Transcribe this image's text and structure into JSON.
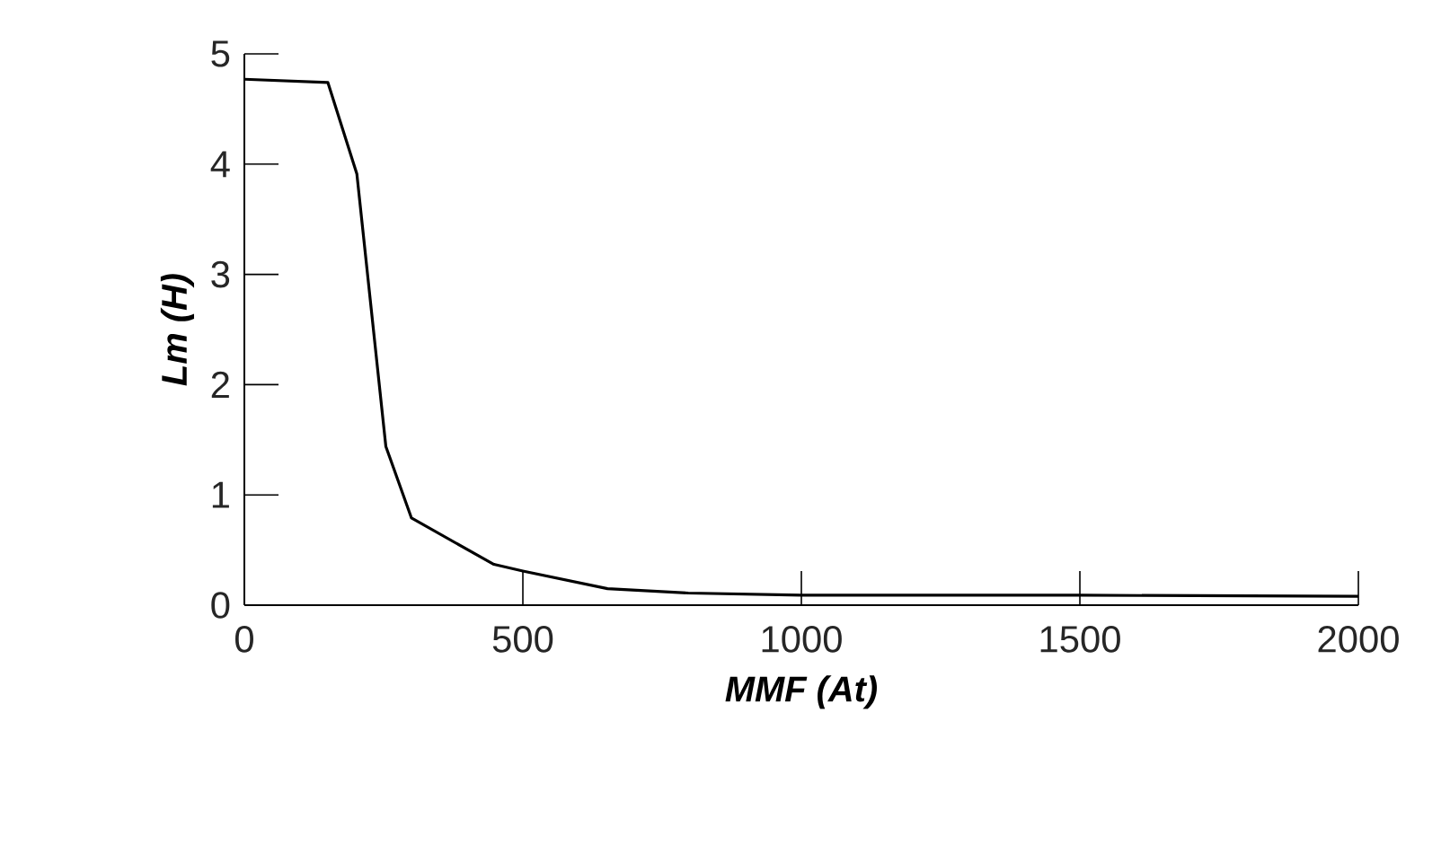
{
  "chart_data": {
    "type": "line",
    "xlabel": "MMF (At)",
    "ylabel": "Lm (H)",
    "x": [
      0,
      150,
      202,
      254,
      300,
      448,
      500,
      652,
      797,
      1000,
      1500,
      2000
    ],
    "values": [
      4.77,
      4.74,
      3.91,
      1.44,
      0.79,
      0.37,
      0.31,
      0.15,
      0.11,
      0.09,
      0.09,
      0.08
    ],
    "color": "#000000",
    "xlim": [
      0,
      2000
    ],
    "ylim": [
      0,
      5
    ],
    "xticks": [
      0,
      500,
      1000,
      1500,
      2000
    ],
    "yticks": [
      0,
      1,
      2,
      3,
      4,
      5
    ]
  }
}
